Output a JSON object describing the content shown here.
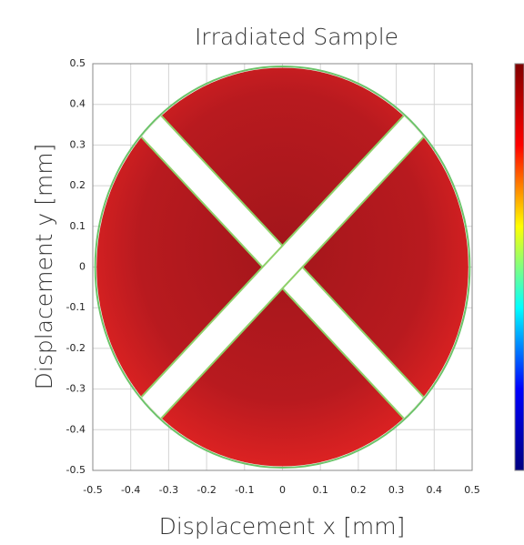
{
  "chart_data": {
    "type": "heatmap",
    "title": "Irradiated Sample",
    "x_label": "Displacement x [mm]",
    "y_label": "Displacement y [mm]",
    "xlim": [
      -0.5,
      0.5
    ],
    "ylim": [
      -0.5,
      0.5
    ],
    "xticks": [
      -0.5,
      -0.4,
      -0.3,
      -0.2,
      -0.1,
      0,
      0.1,
      0.2,
      0.3,
      0.4,
      0.5
    ],
    "yticks": [
      -0.5,
      -0.4,
      -0.3,
      -0.2,
      -0.1,
      0,
      0.1,
      0.2,
      0.3,
      0.4,
      0.5
    ],
    "grid": true,
    "colormap": "jet",
    "colorbar": true
  }
}
